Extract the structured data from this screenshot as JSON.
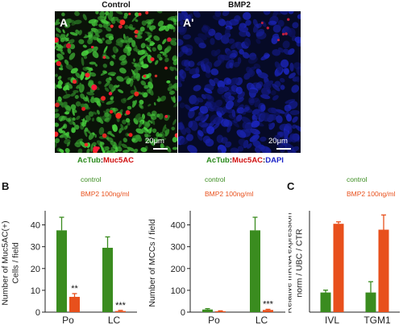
{
  "panels": {
    "A": {
      "label": "A",
      "header": "Control",
      "scale": "20μm",
      "caption": [
        {
          "text": "AcTub",
          "color": "green"
        },
        {
          "text": ":",
          "color": "black"
        },
        {
          "text": "Muc5AC",
          "color": "red"
        }
      ]
    },
    "A_prime": {
      "label": "A'",
      "header": "BMP2",
      "scale": "20μm",
      "caption": [
        {
          "text": "AcTub",
          "color": "green"
        },
        {
          "text": ":",
          "color": "black"
        },
        {
          "text": "Muc5AC",
          "color": "red"
        },
        {
          "text": ":",
          "color": "black"
        },
        {
          "text": "DAPI",
          "color": "blue"
        }
      ]
    }
  },
  "panel_B_label": "B",
  "panel_C_label": "C",
  "colors": {
    "control": "#3a8c1f",
    "bmp2": "#e8501c"
  },
  "chart_data": [
    {
      "type": "bar",
      "panel": "B-left",
      "ylabel": "Number of Muc5AC(+) Cells / field",
      "ylabel_lines": [
        "Number of Muc5AC(+)",
        "Cells / field"
      ],
      "categories": [
        "Po",
        "LC"
      ],
      "ylim": [
        0,
        45
      ],
      "yticks": [
        0,
        10,
        20,
        30,
        40
      ],
      "legend": [
        "control",
        "BMP2 100ng/ml"
      ],
      "series": [
        {
          "name": "control",
          "values": [
            37.5,
            29.5
          ],
          "errors": [
            6,
            5
          ]
        },
        {
          "name": "BMP2 100ng/ml",
          "values": [
            7,
            0.5
          ],
          "errors": [
            1.5,
            0.3
          ]
        }
      ],
      "annotations": [
        "**",
        "***"
      ]
    },
    {
      "type": "bar",
      "panel": "B-right",
      "ylabel": "Number of MCCs / field",
      "categories": [
        "Po",
        "LC"
      ],
      "ylim": [
        0,
        450
      ],
      "yticks": [
        0,
        100,
        200,
        300,
        400
      ],
      "legend": [
        "control",
        "BMP2 100ng/ml"
      ],
      "series": [
        {
          "name": "control",
          "values": [
            12,
            375
          ],
          "errors": [
            4,
            60
          ]
        },
        {
          "name": "BMP2 100ng/ml",
          "values": [
            4,
            10
          ],
          "errors": [
            2,
            3
          ]
        }
      ],
      "annotations": [
        "",
        "***"
      ]
    },
    {
      "type": "bar",
      "panel": "C",
      "ylabel": "Relative mRNA expression norm / UBC / CTR",
      "ylabel_lines": [
        "Relative mRNA expression",
        "norm / UBC / CTR"
      ],
      "categories": [
        "IVL",
        "TGM1"
      ],
      "ylim": [
        0,
        5
      ],
      "yticks": [],
      "legend": [
        "control",
        "BMP2 100ng/ml"
      ],
      "series": [
        {
          "name": "control",
          "values": [
            1.0,
            1.0
          ],
          "errors": [
            0.12,
            0.55
          ]
        },
        {
          "name": "BMP2 100ng/ml",
          "values": [
            4.5,
            4.2
          ],
          "errors": [
            0.1,
            0.75
          ]
        }
      ],
      "annotations": [
        "",
        ""
      ]
    }
  ]
}
